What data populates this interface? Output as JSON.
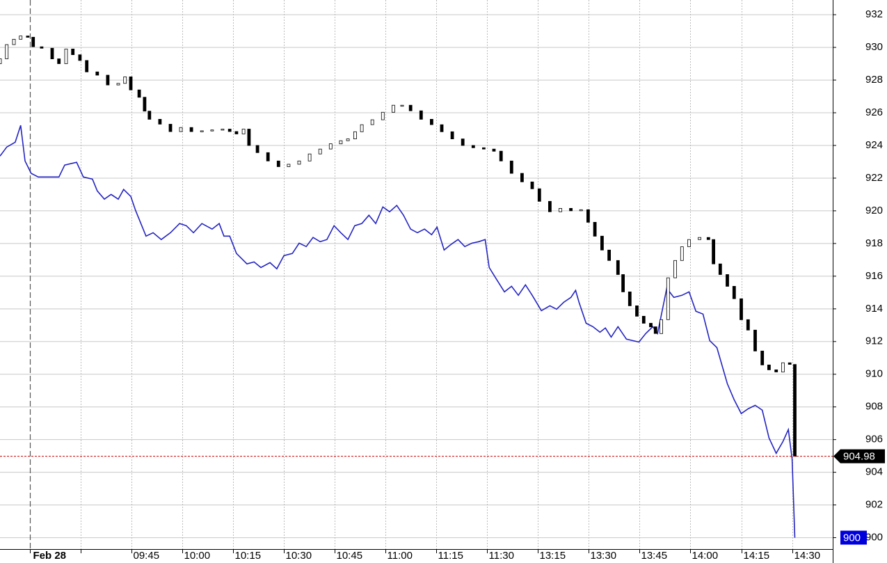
{
  "chart_data": {
    "type": "candlestick",
    "xlim": [
      -8.8,
      237
    ],
    "ylim": [
      899.3,
      932.9
    ],
    "yticks": [
      900,
      902,
      904,
      906,
      908,
      910,
      912,
      914,
      916,
      918,
      920,
      922,
      924,
      926,
      928,
      930,
      932
    ],
    "xticks": [
      {
        "value": 0,
        "label": "Feb 28"
      },
      {
        "value": 15,
        "label": null
      },
      {
        "value": 30,
        "label": "09:45"
      },
      {
        "value": 45,
        "label": "10:00"
      },
      {
        "value": 60,
        "label": "10:15"
      },
      {
        "value": 75,
        "label": "10:30"
      },
      {
        "value": 90,
        "label": "10:45"
      },
      {
        "value": 105,
        "label": "11:00"
      },
      {
        "value": 120,
        "label": "11:15"
      },
      {
        "value": 135,
        "label": "11:30"
      },
      {
        "value": 150,
        "label": "13:15"
      },
      {
        "value": 165,
        "label": "13:30"
      },
      {
        "value": 180,
        "label": "13:45"
      },
      {
        "value": 195,
        "label": "14:00"
      },
      {
        "value": 210,
        "label": "14:15"
      },
      {
        "value": 225,
        "label": "14:30"
      }
    ],
    "grid": true,
    "last_line_color": "#cc0000",
    "series": [
      {
        "type": "line",
        "color": "#2323c2",
        "x": [
          -8.8,
          -6.8,
          -4.3,
          -2.7,
          -1.4,
          0.4,
          2.5,
          8.6,
          10.3,
          13.8,
          15.8,
          18.5,
          19.9,
          22.0,
          24.0,
          26.1,
          27.7,
          29.8,
          31.2,
          34.3,
          36.4,
          38.8,
          41.5,
          44.2,
          46.2,
          48.3,
          50.8,
          53.8,
          55.9,
          57.3,
          59.0,
          61.0,
          64.1,
          66.2,
          68.2,
          70.9,
          72.9,
          75.0,
          77.5,
          79.5,
          81.6,
          83.6,
          85.7,
          87.7,
          89.8,
          91.8,
          93.9,
          95.9,
          98.0,
          100.1,
          102.1,
          104.2,
          106.2,
          108.3,
          110.3,
          112.4,
          114.4,
          116.5,
          118.6,
          120.2,
          122.3,
          124.3,
          126.4,
          128.4,
          130.5,
          132.5,
          134.4,
          135.6,
          137.5,
          140.1,
          142.2,
          144.2,
          146.3,
          148.3,
          151.0,
          153.5,
          155.5,
          157.6,
          159.7,
          161.1,
          162.1,
          164.2,
          166.2,
          168.3,
          169.9,
          171.6,
          173.6,
          176.1,
          179.8,
          181.8,
          183.9,
          185.3,
          188.0,
          190.1,
          192.5,
          194.6,
          196.6,
          198.7,
          200.7,
          202.8,
          205.9,
          207.9,
          210.0,
          212.0,
          214.1,
          216.2,
          218.2,
          220.3,
          222.3,
          223.9,
          225.0,
          225.8
        ],
        "values": [
          923.35,
          923.9,
          924.2,
          925.23,
          923.05,
          922.29,
          922.07,
          922.07,
          922.8,
          922.97,
          922.07,
          921.94,
          921.22,
          920.71,
          921.0,
          920.71,
          921.31,
          920.88,
          920.03,
          918.45,
          918.66,
          918.24,
          918.66,
          919.22,
          919.09,
          918.66,
          919.22,
          918.88,
          919.22,
          918.45,
          918.45,
          917.39,
          916.75,
          916.87,
          916.53,
          916.83,
          916.45,
          917.26,
          917.39,
          918.02,
          917.81,
          918.37,
          918.11,
          918.24,
          919.09,
          918.66,
          918.24,
          919.09,
          919.22,
          919.73,
          919.22,
          920.24,
          919.94,
          920.33,
          919.73,
          918.88,
          918.66,
          918.88,
          918.54,
          919.0,
          917.6,
          917.94,
          918.24,
          917.81,
          918.02,
          918.11,
          918.24,
          916.53,
          915.89,
          915.04,
          915.38,
          914.83,
          915.47,
          914.83,
          913.89,
          914.19,
          913.98,
          914.4,
          914.7,
          915.13,
          914.4,
          913.12,
          912.91,
          912.57,
          912.83,
          912.27,
          912.91,
          912.15,
          911.97,
          912.49,
          912.91,
          912.49,
          915.26,
          914.7,
          914.83,
          915.04,
          913.85,
          913.68,
          912.06,
          911.63,
          909.42,
          908.44,
          907.59,
          907.88,
          908.1,
          907.8,
          906.1,
          905.16,
          905.88,
          906.61,
          904.82,
          900
        ]
      },
      {
        "type": "candlestick",
        "color": "#000000",
        "x": [
          -8.8,
          -6.8,
          -4.7,
          -2.7,
          -0.6,
          1.0,
          3.5,
          6.6,
          8.6,
          10.7,
          12.7,
          14.8,
          16.8,
          19.9,
          23.0,
          26.1,
          28.1,
          29.8,
          32.3,
          33.9,
          35.3,
          38.4,
          41.5,
          44.6,
          47.7,
          50.8,
          53.8,
          56.9,
          59.0,
          61.0,
          63.1,
          64.7,
          67.2,
          70.3,
          73.4,
          76.4,
          79.5,
          82.6,
          85.7,
          88.8,
          91.8,
          93.9,
          96.0,
          98.0,
          101.1,
          104.2,
          107.3,
          109.9,
          112.4,
          115.5,
          118.6,
          121.6,
          124.7,
          127.8,
          130.9,
          134.0,
          137.0,
          139.1,
          142.2,
          145.3,
          148.3,
          150.4,
          153.5,
          156.6,
          159.7,
          162.7,
          164.8,
          166.8,
          168.9,
          171.0,
          173.6,
          175.1,
          177.1,
          179.2,
          181.2,
          183.3,
          184.7,
          186.4,
          188.4,
          190.5,
          192.5,
          194.6,
          197.7,
          200.3,
          201.8,
          203.8,
          205.9,
          207.9,
          210.0,
          212.0,
          214.1,
          216.2,
          218.2,
          220.3,
          222.3,
          224.3,
          225.8
        ],
        "open": [
          929.0,
          929.3,
          930.17,
          930.5,
          930.7,
          930.62,
          930.04,
          929.95,
          929.3,
          929.0,
          929.9,
          929.55,
          929.2,
          928.5,
          928.3,
          927.7,
          927.8,
          928.2,
          927.4,
          926.95,
          926.1,
          925.6,
          925.3,
          924.85,
          925.1,
          924.85,
          924.9,
          924.95,
          925.0,
          924.85,
          924.7,
          925.0,
          924.0,
          923.56,
          923.05,
          922.7,
          922.85,
          923.05,
          923.48,
          923.78,
          924.1,
          924.29,
          924.4,
          924.84,
          925.27,
          925.57,
          926.03,
          926.46,
          926.46,
          926.12,
          925.6,
          925.27,
          924.84,
          924.4,
          924.0,
          923.86,
          923.78,
          923.65,
          923.05,
          922.29,
          921.77,
          921.35,
          920.58,
          919.94,
          920.15,
          920.0,
          920.07,
          919.3,
          918.45,
          917.6,
          916.96,
          916.1,
          915.04,
          914.19,
          913.55,
          913.12,
          912.9,
          912.49,
          913.34,
          915.9,
          916.96,
          917.8,
          918.24,
          918.37,
          918.24,
          916.75,
          916.1,
          915.38,
          914.62,
          913.34,
          912.7,
          911.42,
          910.57,
          910.27,
          910.14,
          910.7,
          910.6
        ],
        "close": [
          929.3,
          930.17,
          930.5,
          930.7,
          930.62,
          930.04,
          929.95,
          929.3,
          929.0,
          929.9,
          929.55,
          929.2,
          928.5,
          928.3,
          927.7,
          927.8,
          928.2,
          927.4,
          926.95,
          926.1,
          925.6,
          925.3,
          924.85,
          925.1,
          924.85,
          924.9,
          924.95,
          925.0,
          924.85,
          924.7,
          925.0,
          924.0,
          923.56,
          923.05,
          922.7,
          922.85,
          923.05,
          923.48,
          923.78,
          924.1,
          924.29,
          924.4,
          924.84,
          925.27,
          925.57,
          926.03,
          926.46,
          926.46,
          926.12,
          925.6,
          925.27,
          924.84,
          924.4,
          924.0,
          923.86,
          923.78,
          923.65,
          923.05,
          922.29,
          921.77,
          921.35,
          920.58,
          919.94,
          920.15,
          920.0,
          920.07,
          919.3,
          918.45,
          917.6,
          916.96,
          916.1,
          915.04,
          914.19,
          913.55,
          913.12,
          912.9,
          912.49,
          913.34,
          915.9,
          916.96,
          917.8,
          918.24,
          918.37,
          918.24,
          916.75,
          916.1,
          915.38,
          914.62,
          913.34,
          912.7,
          911.42,
          910.57,
          910.27,
          910.14,
          910.7,
          910.6,
          904.98
        ]
      }
    ]
  }
}
